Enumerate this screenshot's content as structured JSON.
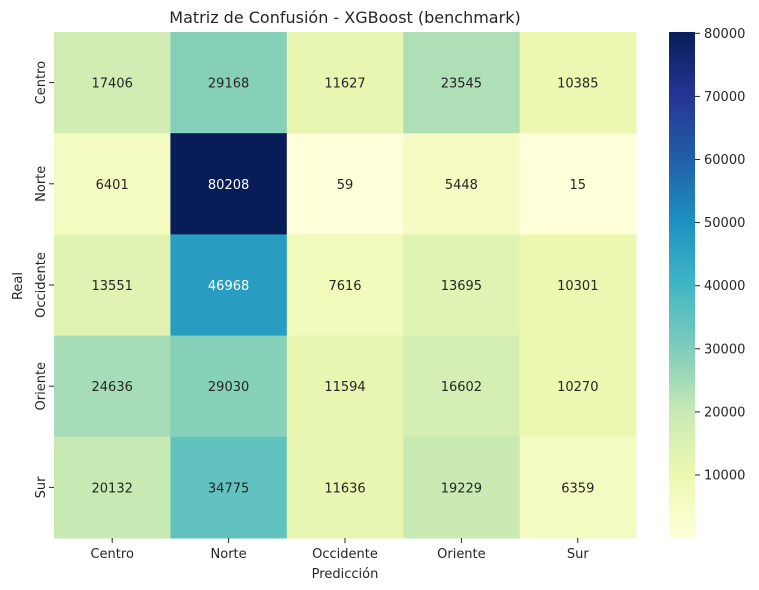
{
  "chart_data": {
    "type": "heatmap",
    "title": "Matriz de Confusión - XGBoost (benchmark)",
    "xlabel": "Predicción",
    "ylabel": "Real",
    "x_categories": [
      "Centro",
      "Norte",
      "Occidente",
      "Oriente",
      "Sur"
    ],
    "y_categories": [
      "Centro",
      "Norte",
      "Occidente",
      "Oriente",
      "Sur"
    ],
    "values": [
      [
        17406,
        29168,
        11627,
        23545,
        10385
      ],
      [
        6401,
        80208,
        59,
        5448,
        15
      ],
      [
        13551,
        46968,
        7616,
        13695,
        10301
      ],
      [
        24636,
        29030,
        11594,
        16602,
        10270
      ],
      [
        20132,
        34775,
        11636,
        19229,
        6359
      ]
    ],
    "colormap": "YlGnBu",
    "color_range": [
      15,
      80208
    ],
    "colorbar_ticks": [
      10000,
      20000,
      30000,
      40000,
      50000,
      60000,
      70000,
      80000
    ]
  }
}
